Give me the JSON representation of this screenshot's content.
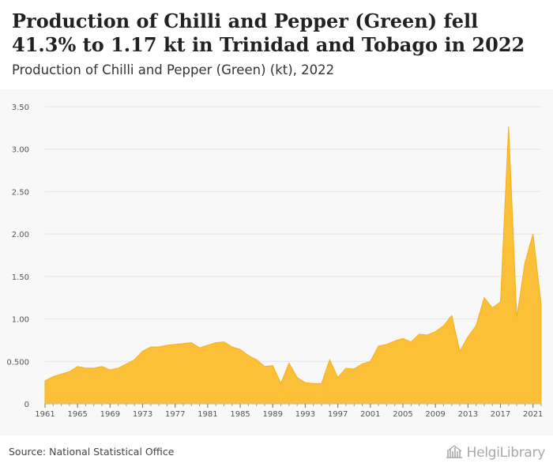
{
  "header": {
    "title": "Production of Chilli and Pepper (Green) fell 41.3% to 1.17 kt in Trinidad and Tobago in 2022",
    "subtitle": "Production of Chilli and Pepper (Green) (kt), 2022"
  },
  "footer": {
    "source": "Source: National Statistical Office",
    "brand_name": "HelgiLibrary",
    "brand_icon": "building-icon"
  },
  "colors": {
    "area_fill": "#fbbd2d",
    "area_stroke": "#f5b01a",
    "plot_background": "#f8f8f8",
    "gridline": "#e3e3e3"
  },
  "chart_data": {
    "type": "area",
    "title": "Production of Chilli and Pepper (Green) (kt), 2022",
    "xlabel": "",
    "ylabel": "",
    "grid": true,
    "legend": "none",
    "xlim": [
      1961,
      2022
    ],
    "ylim": [
      0,
      3.5
    ],
    "y_ticks": [
      0,
      0.5,
      1.0,
      1.5,
      2.0,
      2.5,
      3.0,
      3.5
    ],
    "y_tick_labels": [
      "0",
      "0.500",
      "1.00",
      "1.50",
      "2.00",
      "2.50",
      "3.00",
      "3.50"
    ],
    "x_tick_labels": [
      "1961",
      "1965",
      "1969",
      "1973",
      "1977",
      "1981",
      "1985",
      "1989",
      "1993",
      "1997",
      "2001",
      "2005",
      "2009",
      "2013",
      "2017",
      "2021"
    ],
    "series": [
      {
        "x": [
          1961,
          1962,
          1963,
          1964,
          1965,
          1966,
          1967,
          1968,
          1969,
          1970,
          1971,
          1972,
          1973,
          1974,
          1975,
          1976,
          1977,
          1978,
          1979,
          1980,
          1981,
          1982,
          1983,
          1984,
          1985,
          1986,
          1987,
          1988,
          1989,
          1990,
          1991,
          1992,
          1993,
          1994,
          1995,
          1996,
          1997,
          1998,
          1999,
          2000,
          2001,
          2002,
          2003,
          2004,
          2005,
          2006,
          2007,
          2008,
          2009,
          2010,
          2011,
          2012,
          2013,
          2014,
          2015,
          2016,
          2017,
          2018,
          2019,
          2020,
          2021,
          2022
        ],
        "values": [
          0.27,
          0.32,
          0.35,
          0.38,
          0.44,
          0.42,
          0.42,
          0.44,
          0.4,
          0.42,
          0.47,
          0.52,
          0.62,
          0.67,
          0.67,
          0.69,
          0.7,
          0.71,
          0.72,
          0.66,
          0.69,
          0.72,
          0.73,
          0.67,
          0.64,
          0.57,
          0.52,
          0.44,
          0.45,
          0.24,
          0.48,
          0.31,
          0.25,
          0.24,
          0.24,
          0.52,
          0.31,
          0.42,
          0.41,
          0.47,
          0.5,
          0.68,
          0.7,
          0.74,
          0.77,
          0.73,
          0.82,
          0.81,
          0.85,
          0.92,
          1.04,
          0.62,
          0.79,
          0.92,
          1.25,
          1.13,
          1.2,
          3.27,
          1.02,
          1.66,
          2.0,
          1.17
        ]
      }
    ]
  }
}
